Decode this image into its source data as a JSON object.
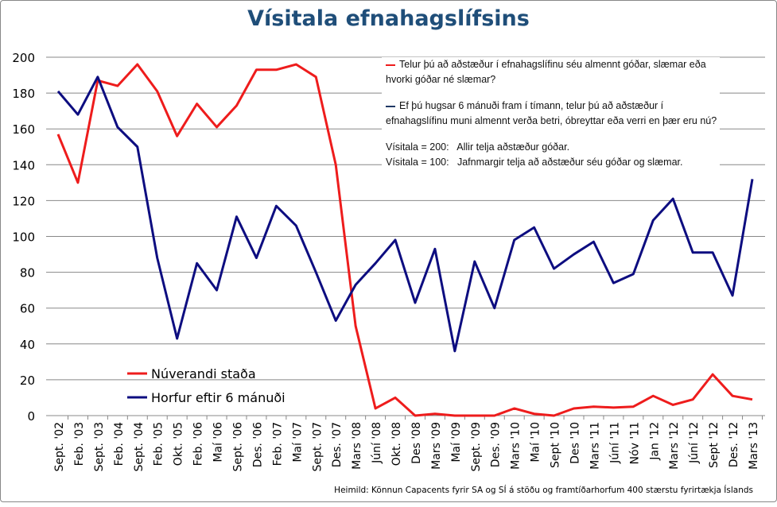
{
  "chart_data": {
    "type": "line",
    "title": "Vísitala efnahagslífsins",
    "categories": [
      "Sept. '02",
      "Feb. '03",
      "Sept. '03",
      "Feb. '04",
      "Sept. '04",
      "Feb. '05",
      "Okt. '05",
      "Feb. '06",
      "Maí '06",
      "Sept. '06",
      "Des. '06",
      "Feb. '07",
      "Maí '07",
      "Sept. '07",
      "Des. '07",
      "Mars '08",
      "Júní '08",
      "Okt. '08",
      "Des '08",
      "Mars '09",
      "Maí '09",
      "Sept. '09",
      "Des. '09",
      "Mars '10",
      "Maí '10",
      "Sept '10",
      "Des '10",
      "Mars '11",
      "Júní '11",
      "Nóv '11",
      "Jan '12",
      "Mars '12",
      "Júní '12",
      "Sept '12",
      "Des. '12",
      "Mars '13"
    ],
    "series": [
      {
        "name": "Núverandi staða",
        "color": "#ee1c1c",
        "values": [
          157,
          130,
          187,
          184,
          196,
          181,
          156,
          174,
          161,
          173,
          193,
          193,
          196,
          189,
          140,
          50,
          4,
          10,
          0,
          1,
          0,
          0,
          0,
          4,
          1,
          0,
          4,
          5,
          4.5,
          5,
          11,
          6,
          9,
          23,
          11,
          9
        ]
      },
      {
        "name": "Horfur eftir 6 mánuði",
        "color": "#0d0d80",
        "values": [
          181,
          168,
          189,
          161,
          150,
          88,
          43,
          85,
          70,
          111,
          88,
          117,
          106,
          80,
          53,
          73,
          85,
          98,
          63,
          93,
          36,
          86,
          60,
          98,
          105,
          82,
          90,
          97,
          74,
          79,
          109,
          121,
          91,
          91,
          67,
          132
        ]
      }
    ],
    "ylim": [
      0,
      200
    ],
    "yticks": [
      0,
      20,
      40,
      60,
      80,
      100,
      120,
      140,
      160,
      180,
      200
    ],
    "grid": true,
    "legend_placement": "bottom-left",
    "annotations": {
      "q1": "Telur þú að aðstæður í efnahagslífinu séu almennt góðar, slæmar eða hvorki góðar né slæmar?",
      "q2": "Ef þú hugsar 6 mánuði fram í tímann, telur þú að aðstæður í efnahagslífinu muni almennt verða betri, óbreyttar eða verri en þær eru nú?",
      "v200": "Vísitala = 200:   Allir telja aðstæður góðar.",
      "v100": "Vísitala = 100:   Jafnmargir telja að aðstæður séu góðar og slæmar."
    },
    "source": "Heimild: Könnun Capacents fyrir SA og SÍ á stöðu og framtíðarhorfum 400 stærstu fyrirtækja Íslands"
  }
}
